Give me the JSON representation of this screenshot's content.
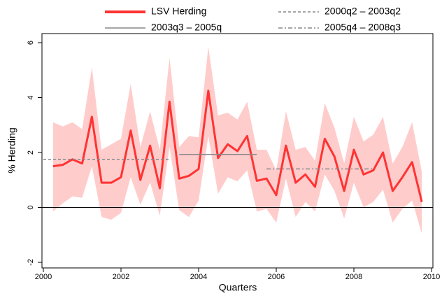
{
  "chart_data": {
    "type": "line",
    "x_label": "Quarters",
    "y_label": "% Herding",
    "xlim": [
      2000,
      2010
    ],
    "ylim": [
      -2,
      6
    ],
    "xticks": [
      2000,
      2002,
      2004,
      2006,
      2008,
      2010
    ],
    "yticks": [
      -2,
      0,
      2,
      4,
      6
    ],
    "series": [
      {
        "name": "LSV Herding",
        "color": "#ff3333",
        "style": "solid",
        "band_color": "#ffcccc",
        "x": [
          2000.25,
          2000.5,
          2000.75,
          2001,
          2001.25,
          2001.5,
          2001.75,
          2002,
          2002.25,
          2002.5,
          2002.75,
          2003,
          2003.25,
          2003.5,
          2003.75,
          2004,
          2004.25,
          2004.5,
          2004.75,
          2005,
          2005.25,
          2005.5,
          2005.75,
          2006,
          2006.25,
          2006.5,
          2006.75,
          2007,
          2007.25,
          2007.5,
          2007.75,
          2008,
          2008.25,
          2008.5,
          2008.75,
          2009,
          2009.25,
          2009.5,
          2009.75
        ],
        "values": [
          1.5,
          1.55,
          1.75,
          1.6,
          3.3,
          0.9,
          0.9,
          1.1,
          2.8,
          1.0,
          2.25,
          0.7,
          3.85,
          1.05,
          1.15,
          1.4,
          4.25,
          1.8,
          2.3,
          2.05,
          2.6,
          0.97,
          1.05,
          0.45,
          2.25,
          0.9,
          1.2,
          0.75,
          2.5,
          1.85,
          0.6,
          2.1,
          1.2,
          1.35,
          2.0,
          0.6,
          1.1,
          1.65,
          0.2
        ],
        "upper": [
          3.1,
          2.95,
          3.1,
          2.85,
          5.1,
          2.1,
          2.3,
          2.5,
          4.5,
          2.2,
          3.5,
          2.1,
          5.45,
          2.2,
          2.6,
          2.55,
          5.85,
          3.35,
          3.45,
          3.2,
          3.85,
          2.1,
          2.1,
          1.35,
          3.5,
          2.1,
          2.2,
          1.7,
          3.8,
          2.9,
          1.6,
          3.3,
          2.4,
          2.65,
          3.3,
          1.6,
          2.2,
          3.1,
          1.3
        ],
        "lower": [
          -0.15,
          0.15,
          0.4,
          0.35,
          1.5,
          -0.35,
          -0.45,
          -0.2,
          1.1,
          0.1,
          0.9,
          -0.3,
          2.2,
          -0.1,
          -0.35,
          0.25,
          2.6,
          0.5,
          1.1,
          0.95,
          1.35,
          -0.15,
          -0.05,
          -0.55,
          1.05,
          -0.35,
          0.2,
          -0.15,
          1.2,
          0.6,
          -0.4,
          0.9,
          0.0,
          0.2,
          0.65,
          -0.55,
          -0.05,
          0.25,
          -0.95
        ]
      },
      {
        "name": "2000q2 – 2003q2",
        "color": "#888888",
        "style": "dashed",
        "x": [
          2000,
          2003.25
        ],
        "values": [
          1.75,
          1.75
        ]
      },
      {
        "name": "2003q3 – 2005q",
        "color": "#888888",
        "style": "solid",
        "x": [
          2003.5,
          2005.5
        ],
        "values": [
          1.93,
          1.93
        ]
      },
      {
        "name": "2005q4 – 2008q3",
        "color": "#888888",
        "style": "dashdot",
        "x": [
          2005.75,
          2008.5
        ],
        "values": [
          1.4,
          1.4
        ]
      }
    ]
  }
}
